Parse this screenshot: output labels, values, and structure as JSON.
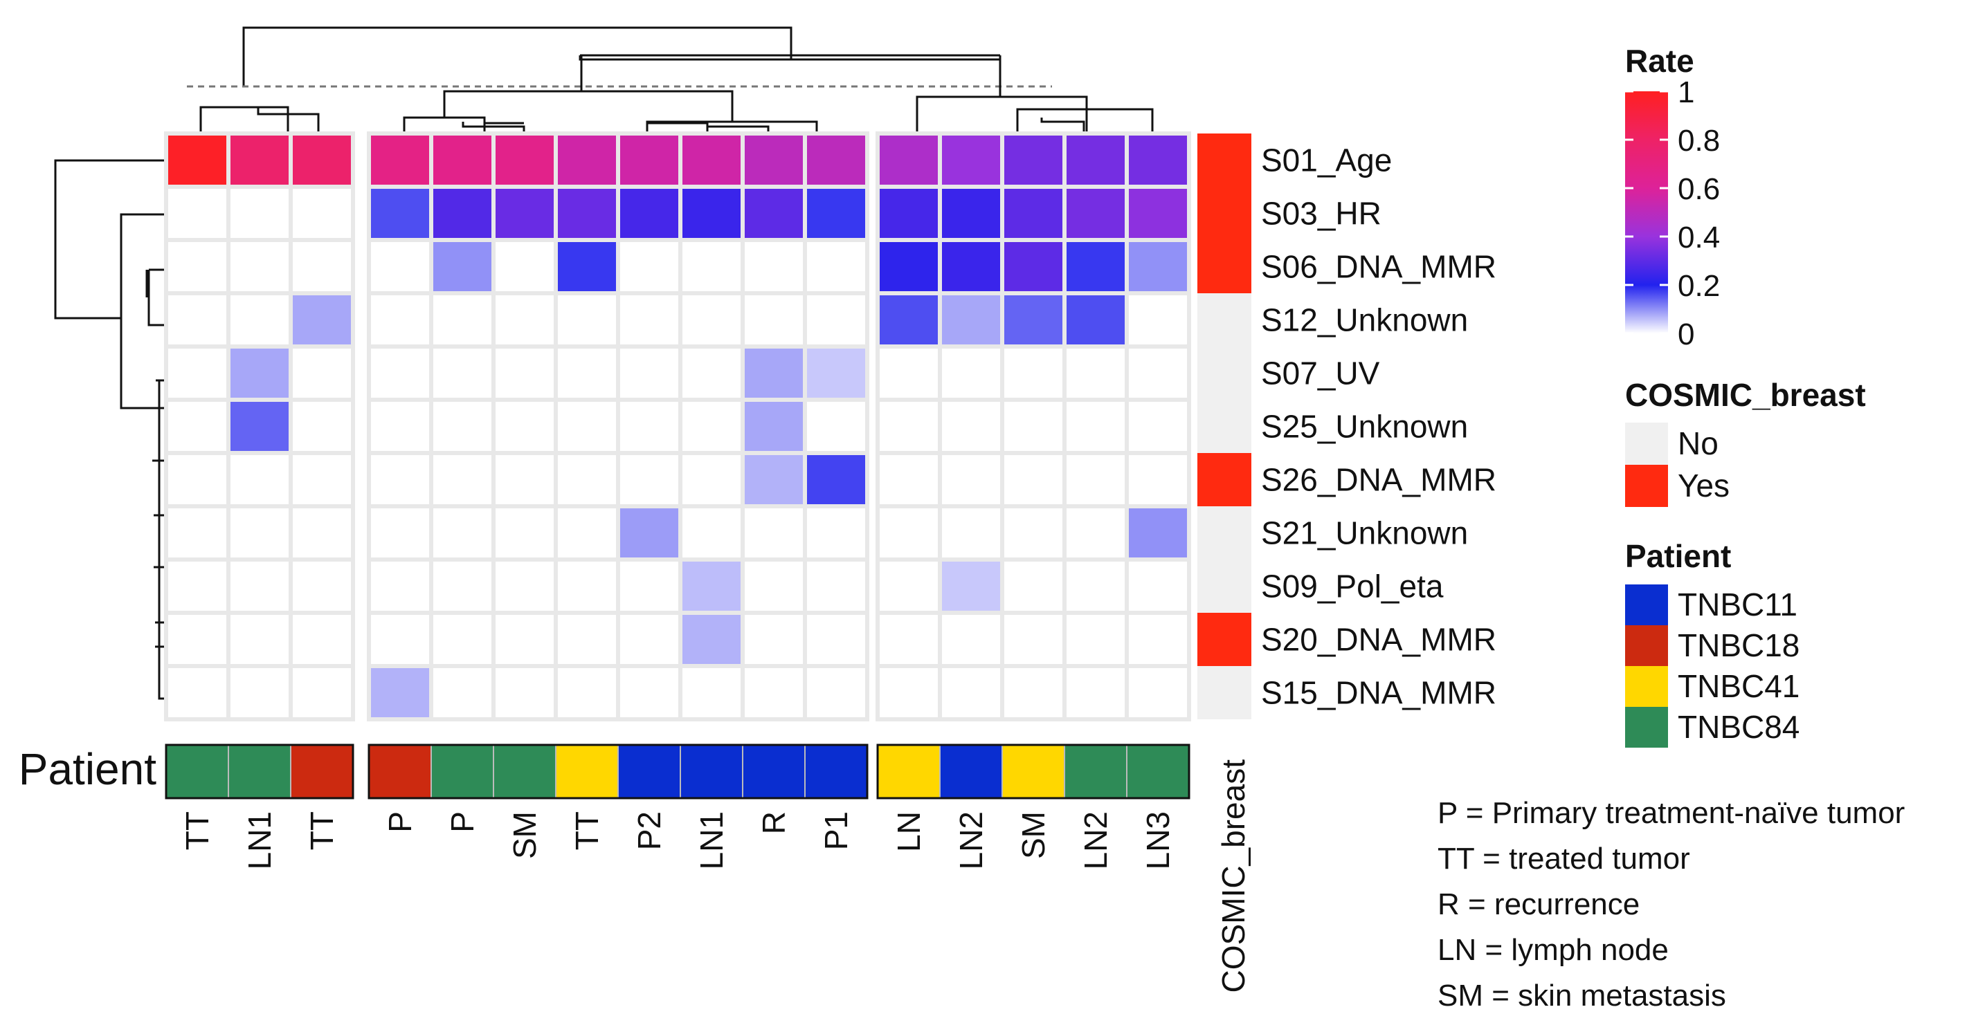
{
  "chart_data": {
    "type": "heatmap",
    "title": "",
    "columns": [
      {
        "label": "TT",
        "patient": "TNBC84",
        "group": 1
      },
      {
        "label": "LN1",
        "patient": "TNBC84",
        "group": 1
      },
      {
        "label": "TT",
        "patient": "TNBC18",
        "group": 1
      },
      {
        "label": "P",
        "patient": "TNBC18",
        "group": 2
      },
      {
        "label": "P",
        "patient": "TNBC84",
        "group": 2
      },
      {
        "label": "SM",
        "patient": "TNBC84",
        "group": 2
      },
      {
        "label": "TT",
        "patient": "TNBC41",
        "group": 2
      },
      {
        "label": "P2",
        "patient": "TNBC11",
        "group": 2
      },
      {
        "label": "LN1",
        "patient": "TNBC11",
        "group": 2
      },
      {
        "label": "R",
        "patient": "TNBC11",
        "group": 2
      },
      {
        "label": "P1",
        "patient": "TNBC11",
        "group": 2
      },
      {
        "label": "LN",
        "patient": "TNBC41",
        "group": 3
      },
      {
        "label": "LN2",
        "patient": "TNBC11",
        "group": 3
      },
      {
        "label": "SM",
        "patient": "TNBC41",
        "group": 3
      },
      {
        "label": "LN2",
        "patient": "TNBC84",
        "group": 3
      },
      {
        "label": "LN3",
        "patient": "TNBC84",
        "group": 3
      }
    ],
    "rows": [
      {
        "label": "S01_Age",
        "cosmic_breast": "Yes",
        "values": [
          0.98,
          0.78,
          0.78,
          0.68,
          0.66,
          0.66,
          0.56,
          0.56,
          0.56,
          0.5,
          0.5,
          0.46,
          0.4,
          0.34,
          0.34,
          0.34
        ]
      },
      {
        "label": "S03_HR",
        "cosmic_breast": "Yes",
        "values": [
          0,
          0,
          0,
          0.16,
          0.28,
          0.32,
          0.32,
          0.26,
          0.24,
          0.3,
          0.18,
          0.26,
          0.24,
          0.3,
          0.34,
          0.38
        ]
      },
      {
        "label": "S06_DNA_MMR",
        "cosmic_breast": "Yes",
        "values": [
          0,
          0,
          0,
          0,
          0.1,
          0,
          0.18,
          0,
          0,
          0,
          0,
          0.22,
          0.24,
          0.3,
          0.18,
          0.1
        ]
      },
      {
        "label": "S12_Unknown",
        "cosmic_breast": "No",
        "values": [
          0,
          0,
          0.08,
          0,
          0,
          0,
          0,
          0,
          0,
          0,
          0,
          0.16,
          0.08,
          0.14,
          0.16,
          0
        ]
      },
      {
        "label": "S07_UV",
        "cosmic_breast": "No",
        "values": [
          0,
          0.08,
          0,
          0,
          0,
          0,
          0,
          0,
          0,
          0.08,
          0.05,
          0,
          0,
          0,
          0,
          0
        ]
      },
      {
        "label": "S25_Unknown",
        "cosmic_breast": "No",
        "values": [
          0,
          0.14,
          0,
          0,
          0,
          0,
          0,
          0,
          0,
          0.08,
          0,
          0,
          0,
          0,
          0,
          0
        ]
      },
      {
        "label": "S26_DNA_MMR",
        "cosmic_breast": "Yes",
        "values": [
          0,
          0,
          0,
          0,
          0,
          0,
          0,
          0,
          0,
          0.07,
          0.17,
          0,
          0,
          0,
          0,
          0
        ]
      },
      {
        "label": "S21_Unknown",
        "cosmic_breast": "No",
        "values": [
          0,
          0,
          0,
          0,
          0,
          0,
          0,
          0.09,
          0,
          0,
          0,
          0,
          0,
          0,
          0,
          0.1
        ]
      },
      {
        "label": "S09_Pol_eta",
        "cosmic_breast": "No",
        "values": [
          0,
          0,
          0,
          0,
          0,
          0,
          0,
          0,
          0.06,
          0,
          0,
          0,
          0.05,
          0,
          0,
          0
        ]
      },
      {
        "label": "S20_DNA_MMR",
        "cosmic_breast": "Yes",
        "values": [
          0,
          0,
          0,
          0,
          0,
          0,
          0,
          0,
          0.07,
          0,
          0,
          0,
          0,
          0,
          0,
          0
        ]
      },
      {
        "label": "S15_DNA_MMR",
        "cosmic_breast": "No",
        "values": [
          0,
          0,
          0,
          0.07,
          0,
          0,
          0,
          0,
          0,
          0,
          0,
          0,
          0,
          0,
          0,
          0
        ]
      }
    ],
    "colorscale": {
      "title": "Rate",
      "range": [
        0,
        1
      ],
      "stops": [
        {
          "value": 0,
          "color": "#ffffff"
        },
        {
          "value": 0.2,
          "color": "#2222ee"
        },
        {
          "value": 0.4,
          "color": "#9933dd"
        },
        {
          "value": 0.6,
          "color": "#dd2299"
        },
        {
          "value": 0.8,
          "color": "#ee2266"
        },
        {
          "value": 1,
          "color": "#ff2020"
        }
      ],
      "ticks": [
        "1",
        "0.8",
        "0.6",
        "0.4",
        "0.2",
        "0"
      ]
    },
    "cosmic_legend": {
      "title": "COSMIC_breast",
      "items": [
        {
          "label": "No",
          "color": "#f0f0f0"
        },
        {
          "label": "Yes",
          "color": "#ff2a10"
        }
      ]
    },
    "patient_legend": {
      "title": "Patient",
      "items": [
        {
          "label": "TNBC11",
          "color": "#0a2ed0"
        },
        {
          "label": "TNBC18",
          "color": "#cc2a10"
        },
        {
          "label": "TNBC41",
          "color": "#ffd700"
        },
        {
          "label": "TNBC84",
          "color": "#2e8b57"
        }
      ]
    },
    "annotation_labels": {
      "patient_row": "Patient",
      "cosmic_column": "COSMIC_breast"
    },
    "abbreviations": [
      "P = Primary treatment-naïve tumor",
      "TT = treated tumor",
      "R = recurrence",
      "LN = lymph node",
      "SM = skin metastasis"
    ]
  }
}
